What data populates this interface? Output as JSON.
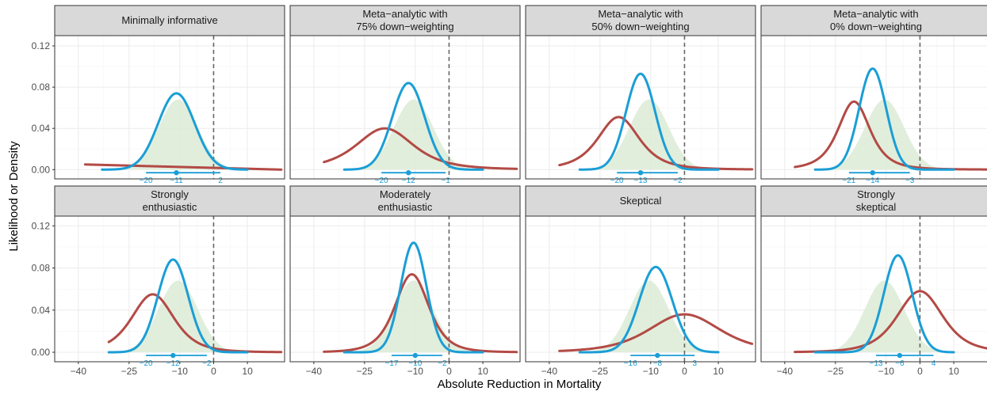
{
  "chart_data": {
    "type": "line",
    "xlabel": "Absolute Reduction in Mortality",
    "ylabel": "Likelihood or Density",
    "xlim": [
      -47,
      21
    ],
    "ylim": [
      -0.009,
      0.13
    ],
    "x_ticks": [
      -40,
      -25,
      -10,
      0,
      10
    ],
    "y_ticks": [
      "0.00",
      "0.04",
      "0.08",
      "0.12"
    ],
    "likelihood": {
      "mean": -10.5,
      "sd": 5.8,
      "peak": 0.068,
      "color": "#dcebd6"
    },
    "colors": {
      "posterior": "#1a9ed6",
      "prior": "#b34a45",
      "reference_line": "#666666"
    },
    "panels": [
      {
        "title": [
          "Minimally informative"
        ],
        "posterior": {
          "mean": -11,
          "sd": 5.4,
          "peak": 0.074,
          "range": [
            -33,
            10
          ]
        },
        "prior": {
          "type": "flat",
          "y_start": 0.005,
          "y_end": 0.0,
          "range": [
            -38,
            20
          ]
        },
        "interval": {
          "low": -20,
          "mid": -11,
          "high": 2,
          "labels": [
            "−20",
            "−11",
            "2"
          ]
        }
      },
      {
        "title": [
          "Meta−analytic with",
          "75% down−weighting"
        ],
        "posterior": {
          "mean": -12,
          "sd": 4.8,
          "peak": 0.084,
          "range": [
            -31,
            10
          ]
        },
        "prior": {
          "type": "t",
          "mean": -19,
          "scale": 9,
          "df": 3,
          "peak": 0.04,
          "range": [
            -37,
            20
          ]
        },
        "interval": {
          "low": -20,
          "mid": -12,
          "high": -1,
          "labels": [
            "−20",
            "−12",
            "−1"
          ]
        }
      },
      {
        "title": [
          "Meta−analytic with",
          "50% down−weighting"
        ],
        "posterior": {
          "mean": -13,
          "sd": 4.3,
          "peak": 0.093,
          "range": [
            -31,
            10
          ]
        },
        "prior": {
          "type": "t",
          "mean": -19.5,
          "scale": 6.5,
          "df": 3,
          "peak": 0.051,
          "range": [
            -37,
            20
          ]
        },
        "interval": {
          "low": -20,
          "mid": -13,
          "high": -2,
          "labels": [
            "−20",
            "−13",
            "−2"
          ]
        }
      },
      {
        "title": [
          "Meta−analytic with",
          "0% down−weighting"
        ],
        "posterior": {
          "mean": -14,
          "sd": 4.0,
          "peak": 0.098,
          "range": [
            -31,
            10
          ]
        },
        "prior": {
          "type": "t",
          "mean": -19.5,
          "scale": 5,
          "df": 3,
          "peak": 0.066,
          "range": [
            -37,
            20
          ]
        },
        "interval": {
          "low": -21,
          "mid": -14,
          "high": -3,
          "labels": [
            "−21",
            "−14",
            "−3"
          ]
        }
      },
      {
        "title": [
          "Strongly",
          "enthusiastic"
        ],
        "posterior": {
          "mean": -12,
          "sd": 4.5,
          "peak": 0.088,
          "range": [
            -31,
            10
          ]
        },
        "prior": {
          "type": "t",
          "mean": -18,
          "scale": 6.5,
          "df": 4,
          "peak": 0.055,
          "range": [
            -31,
            20
          ]
        },
        "interval": {
          "low": -20,
          "mid": -12,
          "high": -2,
          "labels": [
            "−20",
            "−12",
            "−2"
          ]
        }
      },
      {
        "title": [
          "Moderately",
          "enthusiastic"
        ],
        "posterior": {
          "mean": -10.5,
          "sd": 3.8,
          "peak": 0.104,
          "range": [
            -31,
            10
          ]
        },
        "prior": {
          "type": "t",
          "mean": -11,
          "scale": 5.2,
          "df": 4,
          "peak": 0.074,
          "range": [
            -37,
            20
          ]
        },
        "interval": {
          "low": -17,
          "mid": -10,
          "high": -2,
          "labels": [
            "−17",
            "−10",
            "−2"
          ]
        }
      },
      {
        "title": [
          "Skeptical"
        ],
        "posterior": {
          "mean": -8.5,
          "sd": 4.9,
          "peak": 0.081,
          "range": [
            -31,
            10
          ]
        },
        "prior": {
          "type": "t",
          "mean": 0,
          "scale": 11,
          "df": 4,
          "peak": 0.036,
          "range": [
            -37,
            20
          ]
        },
        "interval": {
          "low": -16,
          "mid": -8,
          "high": 3,
          "labels": [
            "−16",
            "−8",
            "3"
          ]
        }
      },
      {
        "title": [
          "Strongly",
          "skeptical"
        ],
        "posterior": {
          "mean": -6.5,
          "sd": 4.2,
          "peak": 0.092,
          "range": [
            -31,
            10
          ]
        },
        "prior": {
          "type": "t",
          "mean": 0,
          "scale": 7,
          "df": 4,
          "peak": 0.058,
          "range": [
            -37,
            20
          ]
        },
        "interval": {
          "low": -13,
          "mid": -6,
          "high": 4,
          "labels": [
            "−13",
            "−6",
            "4"
          ]
        }
      }
    ]
  }
}
